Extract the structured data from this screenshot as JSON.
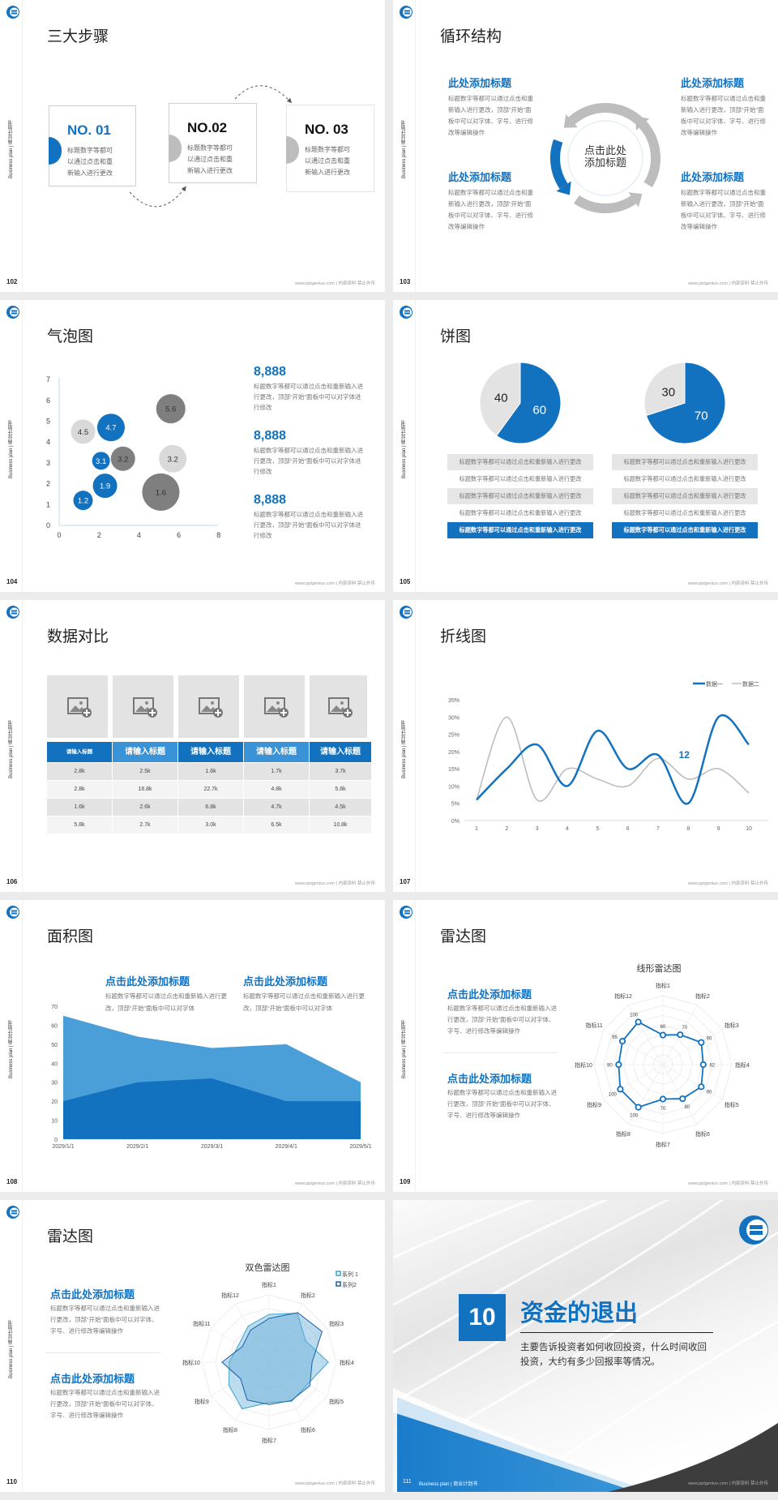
{
  "brand": {
    "vertical_label": "Business plan | 商业计划书",
    "footer": "www.pptgenius.com | 内部资料 禁止外传",
    "accent": "#1272c0",
    "light_blue": "#4a9fd8",
    "gray": "#bfbfbf",
    "dark_gray": "#7f7f7f"
  },
  "s102": {
    "page": "102",
    "title": "三大步骤",
    "steps": [
      {
        "label": "NO. 01",
        "text": "标题数字等都可以通过点击和重新输入进行更改"
      },
      {
        "label": "NO.02",
        "text": "标题数字等都可以通过点击和重新输入进行更改"
      },
      {
        "label": "NO. 03",
        "text": "标题数字等都可以通过点击和重新输入进行更改"
      }
    ]
  },
  "s103": {
    "page": "103",
    "title": "循环结构",
    "center": "点击此处添加标题",
    "items": [
      {
        "heading": "此处添加标题",
        "text": "标题数字等都可以通过点击和重新输入进行更改，顶部“开始”面板中可以对字体、字号、进行修改等编辑操作"
      },
      {
        "heading": "此处添加标题",
        "text": "标题数字等都可以通过点击和重新输入进行更改，顶部“开始”面板中可以对字体、字号、进行修改等编辑操作"
      },
      {
        "heading": "此处添加标题",
        "text": "标题数字等都可以通过点击和重新输入进行更改，顶部“开始”面板中可以对字体、字号、进行修改等编辑操作"
      },
      {
        "heading": "此处添加标题",
        "text": "标题数字等都可以通过点击和重新输入进行更改，顶部“开始”面板中可以对字体、字号、进行修改等编辑操作"
      }
    ]
  },
  "s104": {
    "page": "104",
    "title": "气泡图",
    "stats": [
      {
        "value": "8,888",
        "text": "标题数字等都可以通过点击和重新输入进行更改，顶部“开始”面板中可以对字体进行修改"
      },
      {
        "value": "8,888",
        "text": "标题数字等都可以通过点击和重新输入进行更改，顶部“开始”面板中可以对字体进行修改"
      },
      {
        "value": "8,888",
        "text": "标题数字等都可以通过点击和重新输入进行更改，顶部“开始”面板中可以对字体进行修改"
      }
    ]
  },
  "s105": {
    "page": "105",
    "title": "饼图",
    "left_rows": [
      "标题数字等都可以通过点击和重新输入进行更改",
      "标题数字等都可以通过点击和重新输入进行更改",
      "标题数字等都可以通过点击和重新输入进行更改",
      "标题数字等都可以通过点击和重新输入进行更改",
      "标题数字等都可以通过点击和重新输入进行更改"
    ],
    "right_rows": [
      "标题数字等都可以通过点击和重新输入进行更改",
      "标题数字等都可以通过点击和重新输入进行更改",
      "标题数字等都可以通过点击和重新输入进行更改",
      "标题数字等都可以通过点击和重新输入进行更改",
      "标题数字等都可以通过点击和重新输入进行更改"
    ]
  },
  "s106": {
    "page": "106",
    "title": "数据对比",
    "image_icon": "image-add-icon",
    "headers": [
      "请输入标题",
      "请输入标题",
      "请输入标题",
      "请输入标题",
      "请输入标题"
    ],
    "rows": [
      [
        "2.8k",
        "2.5k",
        "1.6k",
        "1.7k",
        "3.7k"
      ],
      [
        "2.8k",
        "16.8k",
        "22.7k",
        "4.8k",
        "5.8k"
      ],
      [
        "1.6k",
        "2.6k",
        "6.8k",
        "4.7k",
        "4.5k"
      ],
      [
        "5.8k",
        "2.7k",
        "3.0k",
        "6.5k",
        "10.8k"
      ]
    ]
  },
  "s107": {
    "page": "107",
    "title": "折线图"
  },
  "s108": {
    "page": "108",
    "title": "面积图",
    "blocks": [
      {
        "heading": "点击此处添加标题",
        "text": "标题数字等都可以通过点击和重新输入进行更改，顶部“开始”面板中可以对字体"
      },
      {
        "heading": "点击此处添加标题",
        "text": "标题数字等都可以通过点击和重新输入进行更改，顶部“开始”面板中可以对字体"
      }
    ]
  },
  "s109": {
    "page": "109",
    "title": "雷达图",
    "blocks": [
      {
        "heading": "点击此处添加标题",
        "text": "标题数字等都可以通过点击和重新输入进行更改，顶部“开始”面板中可以对字体、字号、进行修改等编辑操作"
      },
      {
        "heading": "点击此处添加标题",
        "text": "标题数字等都可以通过点击和重新输入进行更改，顶部“开始”面板中可以对字体、字号、进行修改等编辑操作"
      }
    ]
  },
  "s110": {
    "page": "110",
    "title": "雷达图",
    "blocks": [
      {
        "heading": "点击此处添加标题",
        "text": "标题数字等都可以通过点击和重新输入进行更改，顶部“开始”面板中可以对字体、字号、进行修改等编辑操作"
      },
      {
        "heading": "点击此处添加标题",
        "text": "标题数字等都可以通过点击和重新输入进行更改，顶部“开始”面板中可以对字体、字号、进行修改等编辑操作"
      }
    ]
  },
  "s111": {
    "page": "111",
    "number": "10",
    "title": "资金的退出",
    "text": "主要告诉投资者如何收回投资，什么时间收回投资，大约有多少回报率等情况。",
    "footer_brand": "Business plan | 商业计划书"
  },
  "chart_data": [
    {
      "type": "scatter",
      "subtype": "bubble",
      "xlim": [
        0,
        8
      ],
      "ylim": [
        0,
        7
      ],
      "xticks": [
        0,
        2,
        4,
        6,
        8
      ],
      "yticks": [
        0,
        1,
        2,
        3,
        4,
        5,
        6,
        7
      ],
      "grid": false,
      "points": [
        {
          "x": 1.2,
          "y": 4.5,
          "size": 2.25,
          "label": "4.5",
          "color": "#d9d9d9"
        },
        {
          "x": 2.6,
          "y": 4.7,
          "size": 2.89,
          "label": "4.7",
          "color": "#1272c0"
        },
        {
          "x": 5.6,
          "y": 5.6,
          "size": 3.24,
          "label": "5.6",
          "color": "#7f7f7f"
        },
        {
          "x": 2.1,
          "y": 3.1,
          "size": 1.21,
          "label": "3.1",
          "color": "#1272c0"
        },
        {
          "x": 3.2,
          "y": 3.2,
          "size": 2.25,
          "label": "3.2",
          "color": "#7f7f7f"
        },
        {
          "x": 5.7,
          "y": 3.2,
          "size": 2.89,
          "label": "3.2",
          "color": "#d9d9d9"
        },
        {
          "x": 2.3,
          "y": 1.9,
          "size": 2.25,
          "label": "1.9",
          "color": "#1272c0"
        },
        {
          "x": 5.1,
          "y": 1.6,
          "size": 5.29,
          "label": "1.6",
          "color": "#7f7f7f"
        },
        {
          "x": 1.2,
          "y": 1.2,
          "size": 1.44,
          "label": "1.2",
          "color": "#1272c0"
        }
      ]
    },
    {
      "type": "pie",
      "values": [
        60,
        40
      ],
      "labels": [
        "60",
        "40"
      ],
      "colors": [
        "#1272c0",
        "#e3e3e3"
      ]
    },
    {
      "type": "pie",
      "values": [
        70,
        30
      ],
      "labels": [
        "70",
        "30"
      ],
      "colors": [
        "#1272c0",
        "#e3e3e3"
      ]
    },
    {
      "type": "line",
      "smooth": true,
      "categories": [
        "1",
        "2",
        "3",
        "4",
        "5",
        "6",
        "7",
        "8",
        "9",
        "10"
      ],
      "ylim": [
        0,
        35
      ],
      "yticks": [
        "0%",
        "5%",
        "10%",
        "15%",
        "20%",
        "25%",
        "30%",
        "35%"
      ],
      "legend": "top-right",
      "series": [
        {
          "name": "数据一",
          "values": [
            6,
            15,
            22,
            10,
            26,
            15,
            19,
            5,
            30,
            22
          ],
          "color": "#1272c0"
        },
        {
          "name": "数据二",
          "values": [
            6,
            30,
            6,
            15,
            12,
            10,
            18,
            12,
            15,
            8
          ],
          "color": "#bdbdbd"
        }
      ],
      "annotation": {
        "text": "12",
        "x": 8,
        "y": 19
      }
    },
    {
      "type": "area",
      "categories": [
        "2029/1/1",
        "2029/2/1",
        "2029/3/1",
        "2029/4/1",
        "2029/5/1"
      ],
      "ylim": [
        0,
        70
      ],
      "yticks": [
        0,
        10,
        20,
        30,
        40,
        50,
        60,
        70
      ],
      "series": [
        {
          "values": [
            65,
            54,
            48,
            50,
            30
          ],
          "color": "#4a9fd8"
        },
        {
          "values": [
            20,
            30,
            32,
            20,
            20
          ],
          "color": "#1272c0"
        }
      ]
    },
    {
      "type": "radar",
      "title": "线形雷达图",
      "max": 140,
      "axes": [
        "指标1",
        "指标2",
        "指标3",
        "指标4",
        "指标5",
        "指标6",
        "指标7",
        "指标8",
        "指标9",
        "指标10",
        "指标11",
        "指标12"
      ],
      "values": [
        60,
        70,
        90,
        82,
        90,
        80,
        70,
        100,
        100,
        90,
        95,
        100
      ],
      "value_labels": [
        "60",
        "70",
        "90",
        "82",
        "90",
        "80",
        "70",
        "100",
        "100",
        "90",
        "95",
        "100"
      ],
      "color": "#1272c0"
    },
    {
      "type": "radar",
      "title": "双色雷达图",
      "max": 100,
      "legend": "top-right",
      "axes": [
        "指标1",
        "指标2",
        "指标3",
        "指标4",
        "指标5",
        "指标6",
        "指标7",
        "指标8",
        "指标9",
        "指标10",
        "指标11",
        "指标12"
      ],
      "series": [
        {
          "name": "系列 1",
          "values": [
            71,
            84,
            63,
            88,
            66,
            67,
            60,
            80,
            69,
            59,
            52,
            62
          ],
          "color": "#3aa3c9"
        },
        {
          "name": "系列2",
          "values": [
            65,
            85,
            91,
            64,
            70,
            66,
            63,
            65,
            49,
            70,
            46,
            55
          ],
          "color": "#1a5fa8"
        }
      ]
    }
  ]
}
